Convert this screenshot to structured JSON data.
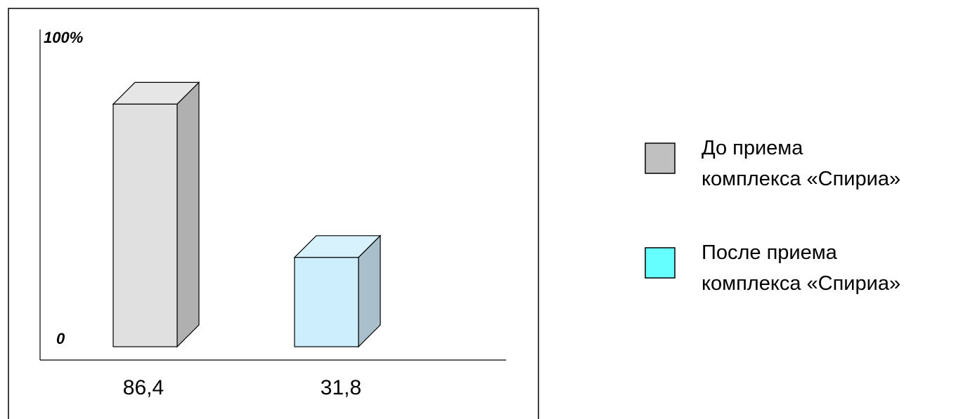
{
  "chart_data": {
    "type": "bar",
    "style": "3d",
    "categories": [
      "86,4",
      "31,8"
    ],
    "values": [
      86.4,
      31.8
    ],
    "ylim": [
      0,
      100
    ],
    "y_tick_labels": {
      "min": "0",
      "max": "100%"
    },
    "grid": false,
    "legend_position": "right",
    "series": [
      {
        "name": "До приема комплекса «Спириа»",
        "label_lines": [
          "До приема",
          "комплекса «Спириа»"
        ],
        "value": 86.4,
        "value_label": "86,4",
        "front_color": "#e0e0e0",
        "side_color": "#b0b0b0",
        "top_color": "#e6e6e6",
        "legend_color": "#c0c0c0"
      },
      {
        "name": "После приема комплекса «Спириа»",
        "label_lines": [
          "После приема",
          "комплекса «Спириа»"
        ],
        "value": 31.8,
        "value_label": "31,8",
        "front_color": "#cdeefc",
        "side_color": "#a9bfcc",
        "top_color": "#d8f2fd",
        "legend_color": "#66ffff"
      }
    ]
  }
}
